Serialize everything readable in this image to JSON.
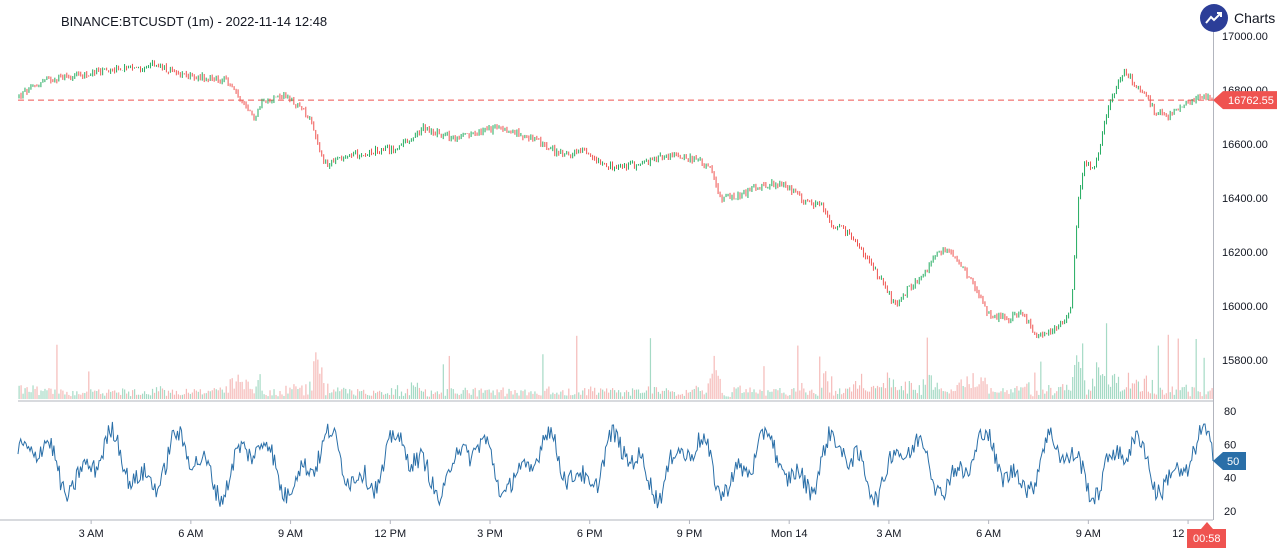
{
  "header": {
    "symbol": "BINANCE:BTCUSDT (1m)",
    "separator": "-",
    "datetime": "2022-11-14 12:48",
    "brand": "Charts p"
  },
  "colors": {
    "up": "#26a69a",
    "up_candle": "#22ab5f",
    "down": "#ef5350",
    "price_line": "#ef5350",
    "rsi_line": "#2a6fa8",
    "axis_text": "#131722",
    "brand": "#2c3e98"
  },
  "chart_data": [
    {
      "type": "line",
      "title": "BINANCE:BTCUSDT (1m) - 2022-11-14 12:48",
      "xlabel": "",
      "ylabel": "",
      "y_axis": "right",
      "ylim": [
        15700,
        17050
      ],
      "yticks": [
        15800,
        16000,
        16200,
        16400,
        16600,
        16800,
        17000
      ],
      "ytick_labels": [
        "15800.00",
        "16000.00",
        "16200.00",
        "16400.00",
        "16600.00",
        "16800.00",
        "17000.00"
      ],
      "x_ticks": [
        "3 AM",
        "6 AM",
        "9 AM",
        "12 PM",
        "3 PM",
        "6 PM",
        "9 PM",
        "Mon 14",
        "3 AM",
        "6 AM",
        "9 AM",
        "12 PM"
      ],
      "x_hours": [
        3,
        6,
        9,
        12,
        15,
        18,
        21,
        24,
        27,
        30,
        33,
        36
      ],
      "x_range_hours": [
        0.8,
        36.75
      ],
      "last_price": 16762.55,
      "last_price_label": "16762.55",
      "countdown_label": "00:58",
      "price_path": [
        [
          0.8,
          16775
        ],
        [
          1.5,
          16830
        ],
        [
          2.2,
          16850
        ],
        [
          3.0,
          16860
        ],
        [
          3.7,
          16880
        ],
        [
          4.2,
          16875
        ],
        [
          4.9,
          16895
        ],
        [
          5.4,
          16870
        ],
        [
          6.1,
          16850
        ],
        [
          6.8,
          16840
        ],
        [
          7.1,
          16830
        ],
        [
          7.4,
          16780
        ],
        [
          7.7,
          16720
        ],
        [
          7.9,
          16700
        ],
        [
          8.2,
          16770
        ],
        [
          8.5,
          16770
        ],
        [
          8.8,
          16780
        ],
        [
          9.2,
          16740
        ],
        [
          9.6,
          16700
        ],
        [
          10.0,
          16520
        ],
        [
          10.3,
          16540
        ],
        [
          10.8,
          16560
        ],
        [
          11.4,
          16570
        ],
        [
          12.0,
          16580
        ],
        [
          12.6,
          16610
        ],
        [
          13.0,
          16660
        ],
        [
          13.4,
          16640
        ],
        [
          14.0,
          16620
        ],
        [
          14.6,
          16640
        ],
        [
          15.2,
          16660
        ],
        [
          15.8,
          16640
        ],
        [
          16.3,
          16620
        ],
        [
          16.8,
          16580
        ],
        [
          17.3,
          16560
        ],
        [
          17.8,
          16570
        ],
        [
          18.3,
          16540
        ],
        [
          18.7,
          16510
        ],
        [
          19.2,
          16520
        ],
        [
          19.7,
          16530
        ],
        [
          20.1,
          16550
        ],
        [
          20.5,
          16560
        ],
        [
          21.0,
          16550
        ],
        [
          21.6,
          16520
        ],
        [
          21.9,
          16400
        ],
        [
          22.3,
          16400
        ],
        [
          22.7,
          16420
        ],
        [
          23.0,
          16440
        ],
        [
          23.5,
          16450
        ],
        [
          24.0,
          16440
        ],
        [
          24.5,
          16380
        ],
        [
          25.0,
          16370
        ],
        [
          25.3,
          16280
        ],
        [
          25.6,
          16290
        ],
        [
          26.0,
          16240
        ],
        [
          26.4,
          16160
        ],
        [
          26.8,
          16090
        ],
        [
          27.2,
          16000
        ],
        [
          27.6,
          16070
        ],
        [
          28.0,
          16100
        ],
        [
          28.3,
          16170
        ],
        [
          28.6,
          16210
        ],
        [
          29.0,
          16190
        ],
        [
          29.3,
          16130
        ],
        [
          29.7,
          16040
        ],
        [
          30.0,
          15970
        ],
        [
          30.3,
          15960
        ],
        [
          30.6,
          15950
        ],
        [
          30.9,
          15980
        ],
        [
          31.2,
          15940
        ],
        [
          31.5,
          15880
        ],
        [
          31.8,
          15900
        ],
        [
          32.1,
          15930
        ],
        [
          32.3,
          15950
        ],
        [
          32.5,
          16010
        ],
        [
          32.7,
          16400
        ],
        [
          32.9,
          16540
        ],
        [
          33.1,
          16500
        ],
        [
          33.3,
          16560
        ],
        [
          33.5,
          16700
        ],
        [
          33.8,
          16800
        ],
        [
          34.1,
          16880
        ],
        [
          34.4,
          16820
        ],
        [
          34.7,
          16780
        ],
        [
          35.0,
          16720
        ],
        [
          35.4,
          16700
        ],
        [
          35.8,
          16740
        ],
        [
          36.1,
          16760
        ],
        [
          36.4,
          16780
        ],
        [
          36.75,
          16762.55
        ]
      ]
    },
    {
      "type": "line",
      "xlabel": "",
      "ylabel": "",
      "y_axis": "right",
      "ylim": [
        15,
        83
      ],
      "yticks": [
        20,
        40,
        60,
        80
      ],
      "ytick_labels": [
        "20",
        "40",
        "60",
        "80"
      ],
      "last_value": 50,
      "last_value_label": "50"
    }
  ]
}
